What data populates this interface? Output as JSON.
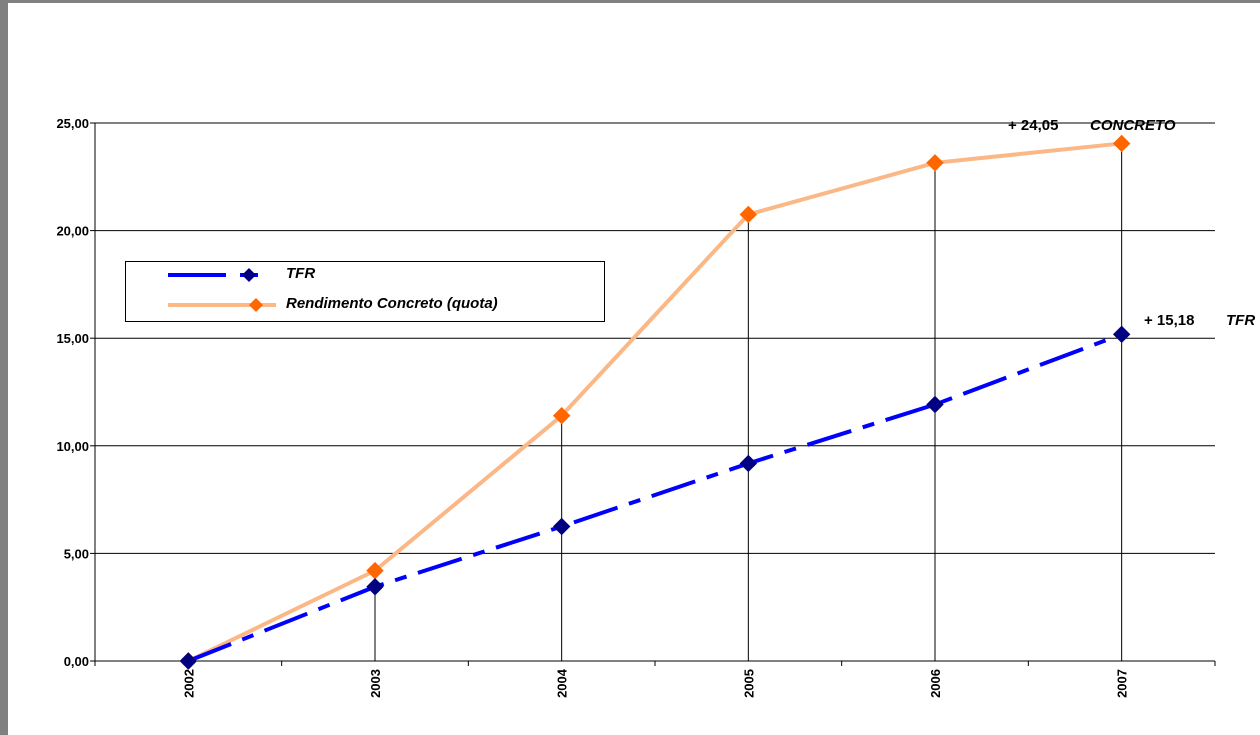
{
  "chart_data": {
    "type": "line",
    "categories": [
      "2002",
      "2003",
      "2004",
      "2005",
      "2006",
      "2007"
    ],
    "y_tick_labels": [
      "0,00",
      "5,00",
      "10,00",
      "15,00",
      "20,00",
      "25,00"
    ],
    "ylim": [
      0,
      25
    ],
    "grid": "horizontal",
    "legend_position": "upper-left",
    "series": [
      {
        "name": "TFR",
        "values": [
          0,
          3.45,
          6.25,
          9.18,
          11.92,
          15.18
        ],
        "color": "#0000ff",
        "marker_color": "#000080",
        "style": "dash-dot"
      },
      {
        "name": "Rendimento Concreto (quota)",
        "values": [
          0,
          4.2,
          11.4,
          20.75,
          23.15,
          24.05
        ],
        "color": "#fbb886",
        "marker_color": "#ff6600",
        "style": "solid"
      }
    ],
    "annotations": [
      {
        "value_text": "+ 24,05",
        "label": "CONCRETO"
      },
      {
        "value_text": "+ 15,18",
        "label": "TFR"
      }
    ]
  },
  "legend": {
    "tfr_label": "TFR",
    "concreto_label": "Rendimento Concreto (quota)"
  }
}
